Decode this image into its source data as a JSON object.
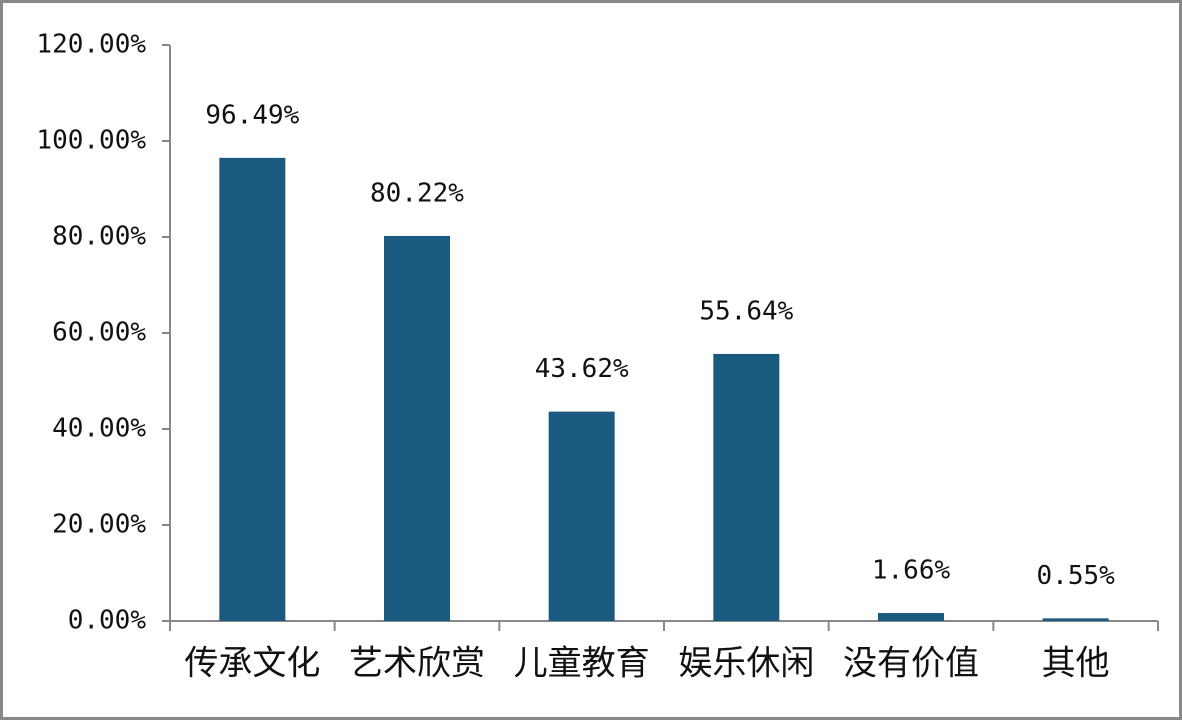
{
  "chart_data": {
    "type": "bar",
    "categories": [
      "传承文化",
      "艺术欣赏",
      "儿童教育",
      "娱乐休闲",
      "没有价值",
      "其他"
    ],
    "values": [
      96.49,
      80.22,
      43.62,
      55.64,
      1.66,
      0.55
    ],
    "value_labels": [
      "96.49%",
      "80.22%",
      "43.62%",
      "55.64%",
      "1.66%",
      "0.55%"
    ],
    "color": "#1a5a80",
    "ylim": [
      0,
      120
    ],
    "yticks": [
      {
        "value": 0,
        "label": "0.00%"
      },
      {
        "value": 20,
        "label": "20.00%"
      },
      {
        "value": 40,
        "label": "40.00%"
      },
      {
        "value": 60,
        "label": "60.00%"
      },
      {
        "value": 80,
        "label": "80.00%"
      },
      {
        "value": 100,
        "label": "100.00%"
      },
      {
        "value": 120,
        "label": "120.00%"
      }
    ],
    "grid": false
  }
}
